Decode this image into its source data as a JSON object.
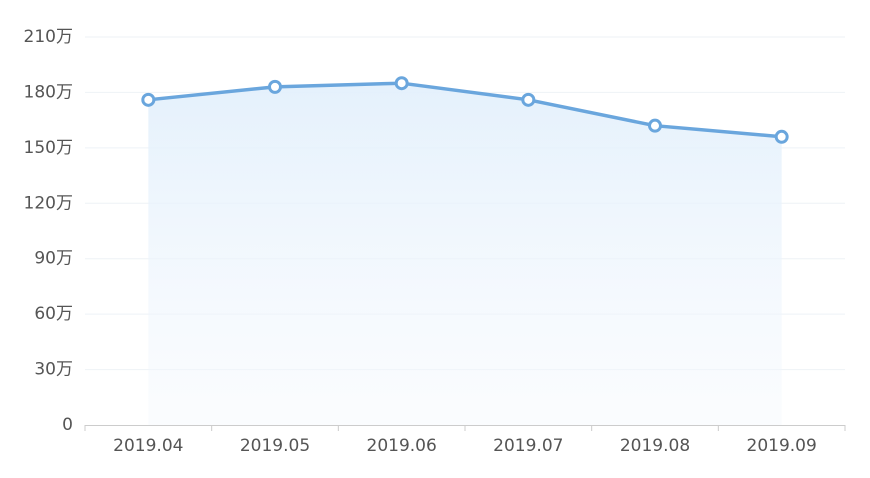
{
  "chart_data": {
    "type": "line",
    "categories": [
      "2019.04",
      "2019.05",
      "2019.06",
      "2019.07",
      "2019.08",
      "2019.09"
    ],
    "series": [
      {
        "name": null,
        "color": "#6aa6dd",
        "values": [
          176,
          183,
          185,
          176,
          162,
          156
        ]
      }
    ],
    "ylim": [
      0,
      210
    ],
    "yticks": [
      0,
      {
        "value": 30,
        "label": "30万"
      },
      {
        "value": 60,
        "label": "60万"
      },
      {
        "value": 90,
        "label": "90万"
      },
      {
        "value": 120,
        "label": "120万"
      },
      {
        "value": 150,
        "label": "150万"
      },
      {
        "value": 180,
        "label": "180万"
      },
      {
        "value": 210,
        "label": "210万"
      }
    ],
    "grid": true,
    "area": true
  }
}
